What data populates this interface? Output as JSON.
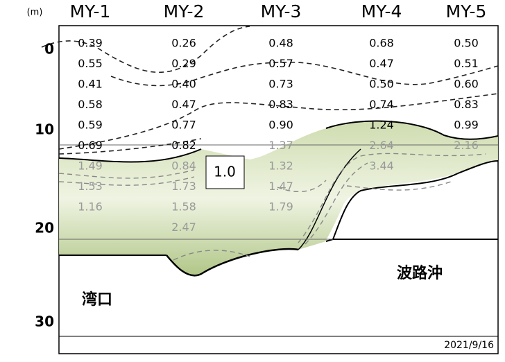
{
  "unit": "(m)",
  "columns": [
    "MY-1",
    "MY-2",
    "MY-3",
    "MY-4",
    "MY-5"
  ],
  "depth_labels": [
    "0",
    "10",
    "20",
    "30"
  ],
  "rows": [
    [
      "0.39",
      "0.26",
      "0.48",
      "0.68",
      "0.50"
    ],
    [
      "0.55",
      "0.29",
      "0.57",
      "0.47",
      "0.51"
    ],
    [
      "0.41",
      "0.40",
      "0.73",
      "0.50",
      "0.60"
    ],
    [
      "0.58",
      "0.47",
      "0.83",
      "0.74",
      "0.83"
    ],
    [
      "0.59",
      "0.77",
      "0.90",
      "1.24",
      "0.99"
    ],
    [
      "0.69",
      "0.82",
      "1.37",
      "2.64",
      "2.16"
    ],
    [
      "1.49",
      "0.84",
      "1.32",
      "3.44",
      null
    ],
    [
      "1.53",
      "1.73",
      "1.47",
      null,
      null
    ],
    [
      "1.16",
      "1.58",
      "1.79",
      null,
      null
    ],
    [
      null,
      "2.47",
      null,
      null,
      null
    ]
  ],
  "contour_label": "1.0",
  "region_right": "波路沖",
  "region_left": "湾口",
  "date": "2021/9/16"
}
